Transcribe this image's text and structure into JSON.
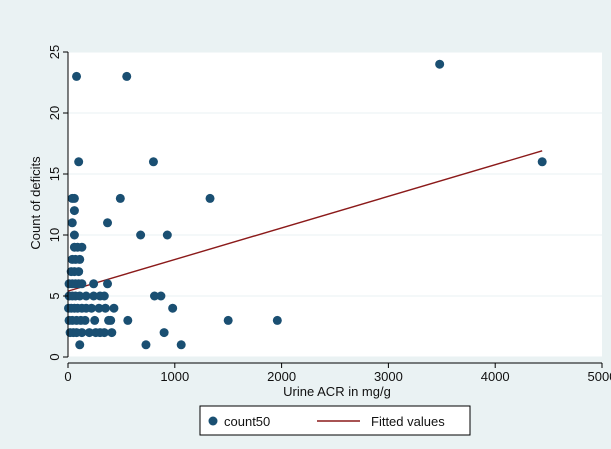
{
  "chart_data": {
    "type": "scatter",
    "xlabel": "Urine ACR in mg/g",
    "ylabel": "Count of deficits",
    "xlim": [
      0,
      5000
    ],
    "ylim": [
      0,
      25
    ],
    "xticks": [
      0,
      1000,
      2000,
      3000,
      4000,
      5000
    ],
    "yticks": [
      0,
      5,
      10,
      15,
      20,
      25
    ],
    "grid": "horizontal",
    "legend_position": "bottom",
    "colors": {
      "outer_background": "#eaf2f3",
      "plot_background": "#ffffff",
      "points": "#1a4f72",
      "fit_line": "#8b1a1a",
      "gridline": "#eaf2f3",
      "axis": "#000000"
    },
    "series": [
      {
        "name": "count50",
        "kind": "scatter",
        "points": [
          [
            80,
            23
          ],
          [
            550,
            23
          ],
          [
            3480,
            24
          ],
          [
            4440,
            16
          ],
          [
            100,
            16
          ],
          [
            800,
            16
          ],
          [
            40,
            13
          ],
          [
            60,
            13
          ],
          [
            490,
            13
          ],
          [
            1330,
            13
          ],
          [
            60,
            12
          ],
          [
            40,
            11
          ],
          [
            370,
            11
          ],
          [
            60,
            10
          ],
          [
            680,
            10
          ],
          [
            930,
            10
          ],
          [
            60,
            9
          ],
          [
            90,
            9
          ],
          [
            130,
            9
          ],
          [
            40,
            8
          ],
          [
            70,
            8
          ],
          [
            110,
            8
          ],
          [
            30,
            7
          ],
          [
            60,
            7
          ],
          [
            100,
            7
          ],
          [
            10,
            6
          ],
          [
            40,
            6
          ],
          [
            70,
            6
          ],
          [
            100,
            6
          ],
          [
            130,
            6
          ],
          [
            240,
            6
          ],
          [
            370,
            6
          ],
          [
            10,
            5
          ],
          [
            40,
            5
          ],
          [
            70,
            5
          ],
          [
            110,
            5
          ],
          [
            170,
            5
          ],
          [
            240,
            5
          ],
          [
            300,
            5
          ],
          [
            340,
            5
          ],
          [
            810,
            5
          ],
          [
            870,
            5
          ],
          [
            5,
            4
          ],
          [
            30,
            4
          ],
          [
            60,
            4
          ],
          [
            90,
            4
          ],
          [
            130,
            4
          ],
          [
            170,
            4
          ],
          [
            220,
            4
          ],
          [
            290,
            4
          ],
          [
            350,
            4
          ],
          [
            430,
            4
          ],
          [
            980,
            4
          ],
          [
            10,
            3
          ],
          [
            40,
            3
          ],
          [
            80,
            3
          ],
          [
            120,
            3
          ],
          [
            160,
            3
          ],
          [
            250,
            3
          ],
          [
            380,
            3
          ],
          [
            400,
            3
          ],
          [
            560,
            3
          ],
          [
            1500,
            3
          ],
          [
            1960,
            3
          ],
          [
            20,
            2
          ],
          [
            50,
            2
          ],
          [
            80,
            2
          ],
          [
            130,
            2
          ],
          [
            200,
            2
          ],
          [
            260,
            2
          ],
          [
            300,
            2
          ],
          [
            340,
            2
          ],
          [
            410,
            2
          ],
          [
            900,
            2
          ],
          [
            110,
            1
          ],
          [
            730,
            1
          ],
          [
            1060,
            1
          ]
        ]
      },
      {
        "name": "Fitted values",
        "kind": "line",
        "points": [
          [
            0,
            5.4
          ],
          [
            4440,
            16.9
          ]
        ]
      }
    ]
  }
}
